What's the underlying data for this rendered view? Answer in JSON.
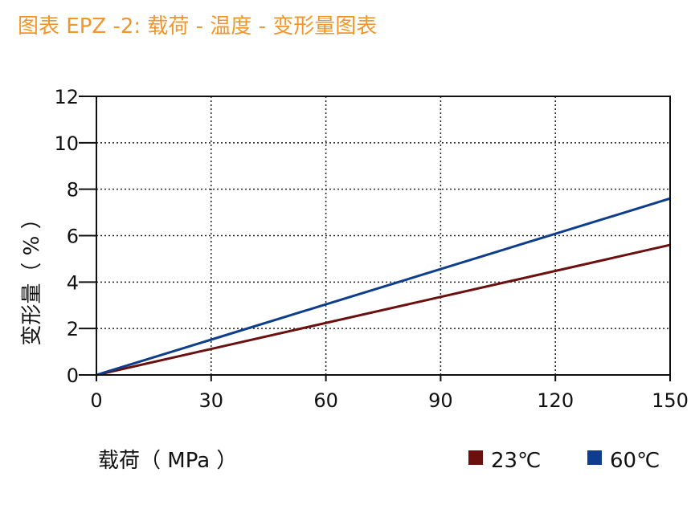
{
  "chart_data": {
    "type": "line",
    "title": "图表  EPZ -2: 载荷 - 温度 - 变形量图表",
    "xlabel": "载荷（ MPa ）",
    "ylabel": "变形量（ % ）",
    "x_ticks": [
      0,
      30,
      60,
      90,
      120,
      150
    ],
    "y_ticks": [
      0,
      2,
      4,
      6,
      8,
      10,
      12
    ],
    "xlim": [
      0,
      150
    ],
    "ylim": [
      0,
      12
    ],
    "grid": true,
    "legend_position": "bottom-right",
    "series": [
      {
        "name": "23℃",
        "color": "#6b0f0f",
        "x": [
          0,
          150
        ],
        "y": [
          0,
          5.6
        ]
      },
      {
        "name": "60℃",
        "color": "#0d3d8c",
        "x": [
          0,
          150
        ],
        "y": [
          0,
          7.6
        ]
      }
    ]
  }
}
